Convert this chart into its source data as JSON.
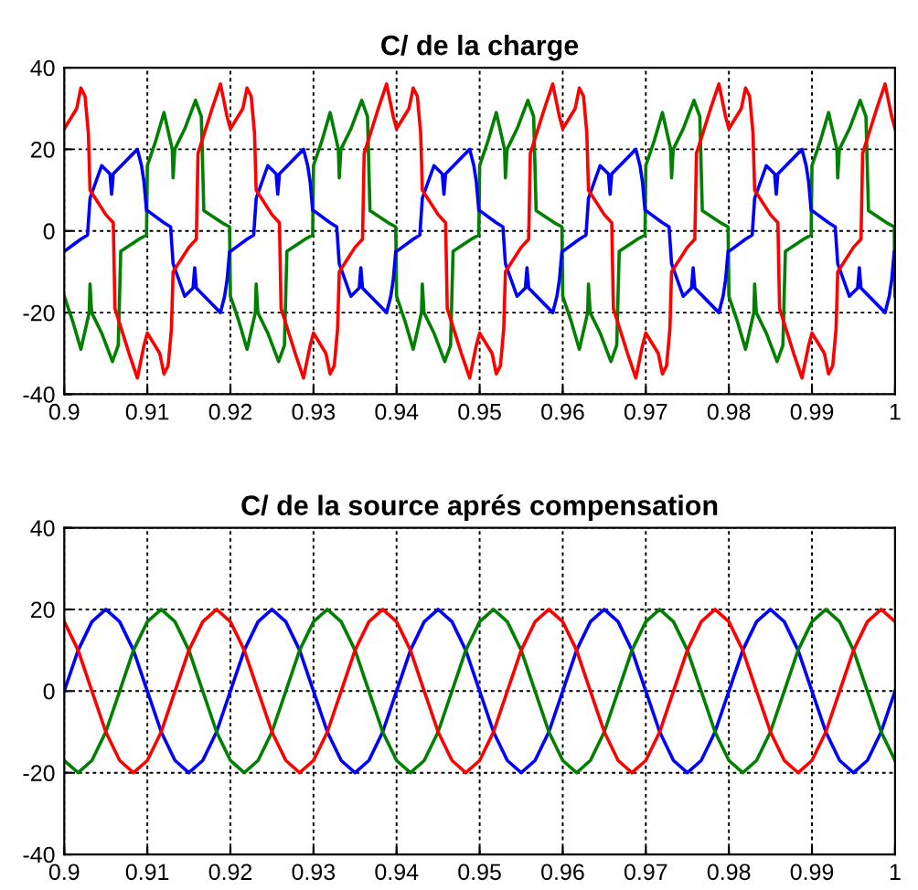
{
  "chart_data": [
    {
      "type": "line",
      "title": "C/ de la charge",
      "xlim": [
        0.9,
        1
      ],
      "ylim": [
        -40,
        40
      ],
      "xticks": [
        0.9,
        0.91,
        0.92,
        0.93,
        0.94,
        0.95,
        0.96,
        0.97,
        0.98,
        0.99,
        1
      ],
      "yticks": [
        -40,
        -20,
        0,
        20,
        40
      ],
      "grid": true,
      "line_style": "solid",
      "series": [
        {
          "color": "#008000",
          "x": [
            0.9,
            0.901,
            0.902,
            0.903,
            0.9031,
            0.9033,
            0.9045,
            0.9058,
            0.9065,
            0.9068,
            0.909,
            0.9099,
            0.91,
            0.911,
            0.912,
            0.913,
            0.9131,
            0.9133,
            0.9145,
            0.9158,
            0.9165,
            0.9168,
            0.919,
            0.9199,
            0.92,
            0.921,
            0.922,
            0.923,
            0.9231,
            0.9233,
            0.9245,
            0.9258,
            0.9265,
            0.9268,
            0.929,
            0.9299,
            0.93,
            0.931,
            0.932,
            0.933,
            0.9331,
            0.9333,
            0.9345,
            0.9358,
            0.9365,
            0.9368,
            0.939,
            0.9399,
            0.94,
            0.941,
            0.942,
            0.943,
            0.9431,
            0.9433,
            0.9445,
            0.9458,
            0.9465,
            0.9468,
            0.949,
            0.9499,
            0.95,
            0.951,
            0.952,
            0.953,
            0.9531,
            0.9533,
            0.9545,
            0.9558,
            0.9565,
            0.9568,
            0.959,
            0.9599,
            0.96,
            0.961,
            0.962,
            0.963,
            0.9631,
            0.9633,
            0.9645,
            0.9658,
            0.9665,
            0.9668,
            0.969,
            0.9699,
            0.97,
            0.971,
            0.972,
            0.973,
            0.9731,
            0.9733,
            0.9745,
            0.9758,
            0.9765,
            0.9768,
            0.979,
            0.9799,
            0.98,
            0.981,
            0.982,
            0.983,
            0.9831,
            0.9833,
            0.9845,
            0.9858,
            0.9865,
            0.9868,
            0.989,
            0.9899,
            0.99,
            0.991,
            0.992,
            0.993,
            0.9931,
            0.9933,
            0.9945,
            0.9958,
            0.9965,
            0.9968,
            0.999,
            0.9999,
            1
          ],
          "values": [
            -16,
            -22,
            -29,
            -20,
            -13,
            -20,
            -25,
            -32,
            -28,
            -5,
            -2,
            -1,
            16,
            22,
            29,
            20,
            13,
            20,
            25,
            32,
            28,
            5,
            2,
            1,
            -16,
            -22,
            -29,
            -20,
            -13,
            -20,
            -25,
            -32,
            -28,
            -5,
            -2,
            -1,
            16,
            22,
            29,
            20,
            13,
            20,
            25,
            32,
            28,
            5,
            2,
            1,
            -16,
            -22,
            -29,
            -20,
            -13,
            -20,
            -25,
            -32,
            -28,
            -5,
            -2,
            -1,
            16,
            22,
            29,
            20,
            13,
            20,
            25,
            32,
            28,
            5,
            2,
            1,
            -16,
            -22,
            -29,
            -20,
            -13,
            -20,
            -25,
            -32,
            -28,
            -5,
            -2,
            -1,
            16,
            22,
            29,
            20,
            13,
            20,
            25,
            32,
            28,
            5,
            2,
            1,
            -16,
            -22,
            -29,
            -20,
            -13,
            -20,
            -25,
            -32,
            -28,
            -5,
            -2,
            -1,
            16,
            22,
            29,
            20,
            13,
            20,
            25,
            32,
            28,
            5,
            2,
            1,
            -16
          ]
        },
        {
          "color": "#0000ff",
          "x": [
            0.9,
            0.902,
            0.9028,
            0.9031,
            0.9045,
            0.9055,
            0.9057,
            0.9059,
            0.9088,
            0.9093,
            0.9096,
            0.9099,
            0.91,
            0.912,
            0.9128,
            0.9131,
            0.9145,
            0.9155,
            0.9157,
            0.9159,
            0.9188,
            0.9193,
            0.9196,
            0.9199,
            0.92,
            0.922,
            0.9228,
            0.9231,
            0.9245,
            0.9255,
            0.9257,
            0.9259,
            0.9288,
            0.9293,
            0.9296,
            0.9299,
            0.93,
            0.932,
            0.9328,
            0.9331,
            0.9345,
            0.9355,
            0.9357,
            0.9359,
            0.9388,
            0.9393,
            0.9396,
            0.9399,
            0.94,
            0.942,
            0.9428,
            0.9431,
            0.9445,
            0.9455,
            0.9457,
            0.9459,
            0.9488,
            0.9493,
            0.9496,
            0.9499,
            0.95,
            0.952,
            0.9528,
            0.9531,
            0.9545,
            0.9555,
            0.9557,
            0.9559,
            0.9588,
            0.9593,
            0.9596,
            0.9599,
            0.96,
            0.962,
            0.9628,
            0.9631,
            0.9645,
            0.9655,
            0.9657,
            0.9659,
            0.9688,
            0.9693,
            0.9696,
            0.9699,
            0.97,
            0.972,
            0.9728,
            0.9731,
            0.9745,
            0.9755,
            0.9757,
            0.9759,
            0.9788,
            0.9793,
            0.9796,
            0.9799,
            0.98,
            0.982,
            0.9828,
            0.9831,
            0.9845,
            0.9855,
            0.9857,
            0.9859,
            0.9888,
            0.9893,
            0.9896,
            0.9899,
            0.99,
            0.992,
            0.9928,
            0.9931,
            0.9945,
            0.9955,
            0.9957,
            0.9959,
            0.9988,
            0.9993,
            0.9996,
            0.9999,
            1
          ],
          "values": [
            -5,
            -2,
            -1,
            8,
            16,
            14,
            9,
            14,
            20,
            16,
            12,
            5,
            5,
            2,
            1,
            -8,
            -16,
            -14,
            -9,
            -14,
            -20,
            -16,
            -12,
            -5,
            -5,
            -2,
            -1,
            8,
            16,
            14,
            9,
            14,
            20,
            16,
            12,
            5,
            5,
            2,
            1,
            -8,
            -16,
            -14,
            -9,
            -14,
            -20,
            -16,
            -12,
            -5,
            -5,
            -2,
            -1,
            8,
            16,
            14,
            9,
            14,
            20,
            16,
            12,
            5,
            5,
            2,
            1,
            -8,
            -16,
            -14,
            -9,
            -14,
            -20,
            -16,
            -12,
            -5,
            -5,
            -2,
            -1,
            8,
            16,
            14,
            9,
            14,
            20,
            16,
            12,
            5,
            5,
            2,
            1,
            -8,
            -16,
            -14,
            -9,
            -14,
            -20,
            -16,
            -12,
            -5,
            -5,
            -2,
            -1,
            8,
            16,
            14,
            9,
            14,
            20,
            16,
            12,
            5,
            5,
            2,
            1,
            -8,
            -16,
            -14,
            -9,
            -14,
            -20,
            -16,
            -12,
            -5,
            -5
          ]
        },
        {
          "color": "#ff0000",
          "x": [
            0.9,
            0.9015,
            0.902,
            0.9025,
            0.9029,
            0.9031,
            0.905,
            0.9059,
            0.9061,
            0.9078,
            0.9088,
            0.9096,
            0.91,
            0.9115,
            0.912,
            0.9125,
            0.9129,
            0.9131,
            0.915,
            0.9159,
            0.9161,
            0.9178,
            0.9188,
            0.9196,
            0.92,
            0.9215,
            0.922,
            0.9225,
            0.9229,
            0.9231,
            0.925,
            0.9259,
            0.9261,
            0.9278,
            0.9288,
            0.9296,
            0.93,
            0.9315,
            0.932,
            0.9325,
            0.9329,
            0.9331,
            0.935,
            0.9359,
            0.9361,
            0.9378,
            0.9388,
            0.9396,
            0.94,
            0.9415,
            0.942,
            0.9425,
            0.9429,
            0.9431,
            0.945,
            0.9459,
            0.9461,
            0.9478,
            0.9488,
            0.9496,
            0.95,
            0.9515,
            0.952,
            0.9525,
            0.9529,
            0.9531,
            0.955,
            0.9559,
            0.9561,
            0.9578,
            0.9588,
            0.9596,
            0.96,
            0.9615,
            0.962,
            0.9625,
            0.9629,
            0.9631,
            0.965,
            0.9659,
            0.9661,
            0.9678,
            0.9688,
            0.9696,
            0.97,
            0.9715,
            0.972,
            0.9725,
            0.9729,
            0.9731,
            0.975,
            0.9759,
            0.9761,
            0.9778,
            0.9788,
            0.9796,
            0.98,
            0.9815,
            0.982,
            0.9825,
            0.9829,
            0.9831,
            0.985,
            0.9859,
            0.9861,
            0.9878,
            0.9888,
            0.9896,
            0.99,
            0.9915,
            0.992,
            0.9925,
            0.9929,
            0.9931,
            0.995,
            0.9959,
            0.9961,
            0.9978,
            0.9988,
            0.9996,
            1
          ],
          "values": [
            25,
            30,
            35,
            33,
            24,
            10,
            4,
            2,
            -19,
            -30,
            -36,
            -28,
            -25,
            -30,
            -35,
            -33,
            -24,
            -10,
            -4,
            -2,
            19,
            30,
            36,
            28,
            25,
            30,
            35,
            33,
            24,
            10,
            4,
            2,
            -19,
            -30,
            -36,
            -28,
            -25,
            -30,
            -35,
            -33,
            -24,
            -10,
            -4,
            -2,
            19,
            30,
            36,
            28,
            25,
            30,
            35,
            33,
            24,
            10,
            4,
            2,
            -19,
            -30,
            -36,
            -28,
            -25,
            -30,
            -35,
            -33,
            -24,
            -10,
            -4,
            -2,
            19,
            30,
            36,
            28,
            25,
            30,
            35,
            33,
            24,
            10,
            4,
            2,
            -19,
            -30,
            -36,
            -28,
            -25,
            -30,
            -35,
            -33,
            -24,
            -10,
            -4,
            -2,
            19,
            30,
            36,
            28,
            25,
            30,
            35,
            33,
            24,
            10,
            4,
            2,
            -19,
            -30,
            -36,
            -28,
            -25,
            -30,
            -35,
            -33,
            -24,
            -10,
            -4,
            -2,
            19,
            30,
            36,
            28,
            25
          ]
        }
      ]
    },
    {
      "type": "line",
      "title": "C/ de la source aprés compensation",
      "xlim": [
        0.9,
        1
      ],
      "ylim": [
        -40,
        40
      ],
      "xticks": [
        0.9,
        0.91,
        0.92,
        0.93,
        0.94,
        0.95,
        0.96,
        0.97,
        0.98,
        0.99,
        1
      ],
      "yticks": [
        -40,
        -20,
        0,
        20,
        40
      ],
      "grid": true,
      "line_style": "solid",
      "x": [
        0.9,
        0.90167,
        0.90333,
        0.905,
        0.90667,
        0.90833,
        0.91,
        0.91167,
        0.91333,
        0.915,
        0.91667,
        0.91833,
        0.92,
        0.92167,
        0.92333,
        0.925,
        0.92667,
        0.92833,
        0.93,
        0.93167,
        0.93333,
        0.935,
        0.93667,
        0.93833,
        0.94,
        0.94167,
        0.94333,
        0.945,
        0.94667,
        0.94833,
        0.95,
        0.95167,
        0.95333,
        0.955,
        0.95667,
        0.95833,
        0.96,
        0.96167,
        0.96333,
        0.965,
        0.96667,
        0.96833,
        0.97,
        0.97167,
        0.97333,
        0.975,
        0.97667,
        0.97833,
        0.98,
        0.98167,
        0.98333,
        0.985,
        0.98667,
        0.98833,
        0.99,
        0.99167,
        0.99333,
        0.995,
        0.99667,
        0.99833,
        1
      ],
      "series": [
        {
          "color": "#0000ff",
          "values": [
            0,
            10,
            17,
            20,
            17,
            10,
            0,
            -10,
            -17,
            -20,
            -17,
            -10,
            0,
            10,
            17,
            20,
            17,
            10,
            0,
            -10,
            -17,
            -20,
            -17,
            -10,
            0,
            10,
            17,
            20,
            17,
            10,
            0,
            -10,
            -17,
            -20,
            -17,
            -10,
            0,
            10,
            17,
            20,
            17,
            10,
            0,
            -10,
            -17,
            -20,
            -17,
            -10,
            0,
            10,
            17,
            20,
            17,
            10,
            0,
            -10,
            -17,
            -20,
            -17,
            -10,
            0
          ]
        },
        {
          "color": "#008000",
          "values": [
            -17,
            -20,
            -17,
            -10,
            0,
            10,
            17,
            20,
            17,
            10,
            0,
            -10,
            -17,
            -20,
            -17,
            -10,
            0,
            10,
            17,
            20,
            17,
            10,
            0,
            -10,
            -17,
            -20,
            -17,
            -10,
            0,
            10,
            17,
            20,
            17,
            10,
            0,
            -10,
            -17,
            -20,
            -17,
            -10,
            0,
            10,
            17,
            20,
            17,
            10,
            0,
            -10,
            -17,
            -20,
            -17,
            -10,
            0,
            10,
            17,
            20,
            17,
            10,
            0,
            -10,
            -17
          ]
        },
        {
          "color": "#ff0000",
          "values": [
            17,
            10,
            0,
            -10,
            -17,
            -20,
            -17,
            -10,
            0,
            10,
            17,
            20,
            17,
            10,
            0,
            -10,
            -17,
            -20,
            -17,
            -10,
            0,
            10,
            17,
            20,
            17,
            10,
            0,
            -10,
            -17,
            -20,
            -17,
            -10,
            0,
            10,
            17,
            20,
            17,
            10,
            0,
            -10,
            -17,
            -20,
            -17,
            -10,
            0,
            10,
            17,
            20,
            17,
            10,
            0,
            -10,
            -17,
            -20,
            -17,
            -10,
            0,
            10,
            17,
            20,
            17
          ]
        }
      ]
    }
  ]
}
